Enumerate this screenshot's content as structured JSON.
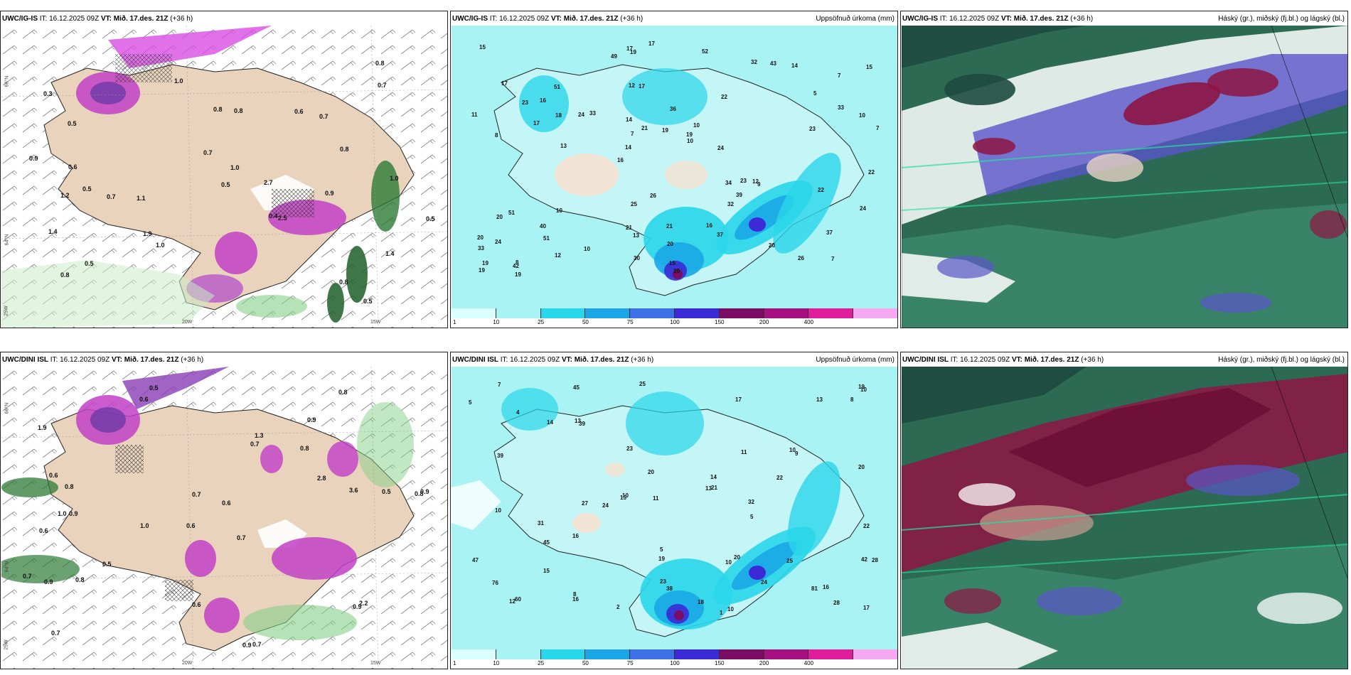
{
  "rows": [
    {
      "panels": [
        {
          "prefix": "UWC/IG-IS",
          "it_label": "IT:",
          "it": "16.12.2025 09Z",
          "vt_label": "VT:",
          "vt": "Mið. 17.des. 21Z",
          "lead": "(+36 h)",
          "right_title": ""
        },
        {
          "prefix": "UWC/IG-IS",
          "it_label": "IT:",
          "it": "16.12.2025 09Z",
          "vt_label": "VT:",
          "vt": "Mið. 17.des. 21Z",
          "lead": "(+36 h)",
          "right_title": "Uppsöfnuð úrkoma (mm)"
        },
        {
          "prefix": "UWC/IG-IS",
          "it_label": "IT:",
          "it": "16.12.2025 09Z",
          "vt_label": "VT:",
          "vt": "Mið. 17.des. 21Z",
          "lead": "(+36 h)",
          "right_title": "Háský (gr.), miðský (fj.bl.) og lágský (bl.)"
        }
      ],
      "precip_values": [
        "7",
        "8",
        "7",
        "16",
        "22",
        "8",
        "12",
        "36",
        "51",
        "33",
        "33",
        "51",
        "17",
        "10",
        "9",
        "17",
        "19",
        "7",
        "34",
        "33",
        "14",
        "21",
        "7",
        "51",
        "32",
        "10",
        "26",
        "37",
        "12",
        "20",
        "24",
        "17",
        "32",
        "12",
        "10",
        "19",
        "19",
        "13",
        "10",
        "20",
        "5",
        "15",
        "39",
        "37",
        "40",
        "19",
        "19",
        "21",
        "14",
        "17",
        "13",
        "11",
        "16",
        "43",
        "42",
        "52",
        "49",
        "21",
        "24",
        "25",
        "10",
        "23",
        "18",
        "20",
        "15",
        "23",
        "22",
        "14",
        "20",
        "19",
        "24",
        "24",
        "22",
        "30",
        "23",
        "26",
        "20",
        "15",
        "16",
        "17"
      ],
      "wind_values": [
        "0.5",
        "0.5",
        "0.4",
        "0.3",
        "1.4",
        "0.5",
        "0.5",
        "1.1",
        "0.7",
        "0.8",
        "0.6",
        "0.8",
        "1.0",
        "1.0",
        "2.7",
        "1.4",
        "0.9",
        "1.0",
        "0.9",
        "0.8",
        "0.8",
        "0.8",
        "0.8",
        "0.5",
        "1.0",
        "0.6",
        "0.7",
        "0.5",
        "0.7",
        "0.7",
        "2.5",
        "1.2",
        "1.9"
      ]
    },
    {
      "panels": [
        {
          "prefix": "UWC/DINI ISL",
          "it_label": "IT:",
          "it": "16.12.2025 09Z",
          "vt_label": "VT:",
          "vt": "Mið. 17.des. 21Z",
          "lead": "(+36 h)",
          "right_title": ""
        },
        {
          "prefix": "UWC/DINI ISL",
          "it_label": "IT:",
          "it": "16.12.2025 09Z",
          "vt_label": "VT:",
          "vt": "Mið. 17.des. 21Z",
          "lead": "(+36 h)",
          "right_title": "Uppsöfnuð úrkoma (mm)"
        },
        {
          "prefix": "UWC/DINI ISL",
          "it_label": "IT:",
          "it": "16.12.2025 09Z",
          "vt_label": "VT:",
          "vt": "Mið. 17.des. 21Z",
          "lead": "(+36 h)",
          "right_title": "Háský (gr.), miðský (fj.bl.) og lágský (bl.)"
        }
      ],
      "precip_values": [
        "2",
        "1",
        "8",
        "24",
        "45",
        "4",
        "27",
        "28",
        "25",
        "23",
        "13",
        "38",
        "10",
        "19",
        "17",
        "13",
        "39",
        "16",
        "24",
        "5",
        "10",
        "10",
        "14",
        "12",
        "9",
        "31",
        "47",
        "45",
        "7",
        "5",
        "11",
        "10",
        "5",
        "8",
        "15",
        "32",
        "42",
        "76",
        "11",
        "16",
        "21",
        "22",
        "28",
        "60",
        "39",
        "20",
        "22",
        "18",
        "14",
        "23",
        "19",
        "20",
        "17",
        "25",
        "16",
        "10",
        "15",
        "20",
        "13",
        "10",
        "81"
      ],
      "wind_values": [
        "0.5",
        "0.9",
        "0.8",
        "0.6",
        "0.7",
        "0.9",
        "1.9",
        "0.8",
        "0.6",
        "0.7",
        "0.6",
        "0.7",
        "0.6",
        "1.0",
        "0.9",
        "0.7",
        "0.6",
        "0.8",
        "2.8",
        "0.5",
        "0.8",
        "1.0",
        "0.9",
        "0.5",
        "0.7",
        "0.6",
        "0.7",
        "3.6",
        "2.2",
        "0.9",
        "0.9",
        "1.3",
        "0.8"
      ]
    }
  ],
  "colorbar": {
    "labels": [
      "1",
      "10",
      "25",
      "50",
      "75",
      "100",
      "150",
      "200",
      "400"
    ],
    "colors": [
      "#d9ffff",
      "#a9f3f5",
      "#2ad6ea",
      "#1aa6e6",
      "#3d6fe5",
      "#3b2ad6",
      "#7a0c63",
      "#a5117f",
      "#e01e9b",
      "#f6a8f0"
    ]
  },
  "axes": {
    "lat_66": "66°N",
    "lat_64": "64°N",
    "lon_25": "25W",
    "lon_20": "20W",
    "lon_15": "15W"
  }
}
